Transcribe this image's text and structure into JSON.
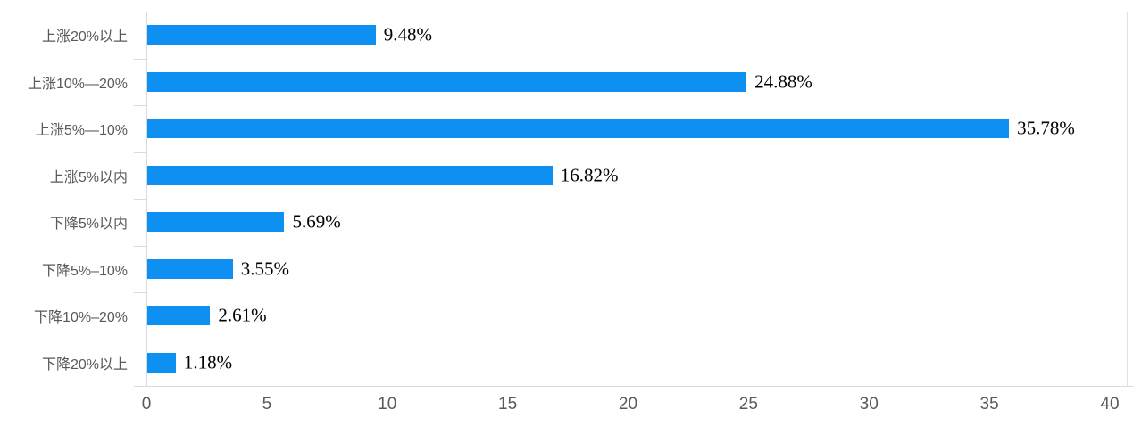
{
  "chart_data": {
    "type": "bar",
    "orientation": "horizontal",
    "title": "",
    "xlabel": "",
    "ylabel": "",
    "categories": [
      "上涨20%以上",
      "上涨10%—20%",
      "上涨5%—10%",
      "上涨5%以内",
      "下降5%以内",
      "下降5%–10%",
      "下降10%–20%",
      "下降20%以上"
    ],
    "values": [
      9.48,
      24.88,
      35.78,
      16.82,
      5.69,
      3.55,
      2.61,
      1.18
    ],
    "value_labels": [
      "9.48%",
      "24.88%",
      "35.78%",
      "16.82%",
      "5.69%",
      "3.55%",
      "2.61%",
      "1.18%"
    ],
    "xlim": [
      0,
      40
    ],
    "xticks": [
      0,
      5,
      10,
      15,
      20,
      25,
      30,
      35,
      40
    ],
    "grid": false,
    "legend": false,
    "colors": {
      "bar": "#0d90f1",
      "axis": "#d6dbe0",
      "tick_labels": "#595959",
      "category_labels": "#595959",
      "value_labels": "#000000",
      "background": "#ffffff"
    }
  }
}
